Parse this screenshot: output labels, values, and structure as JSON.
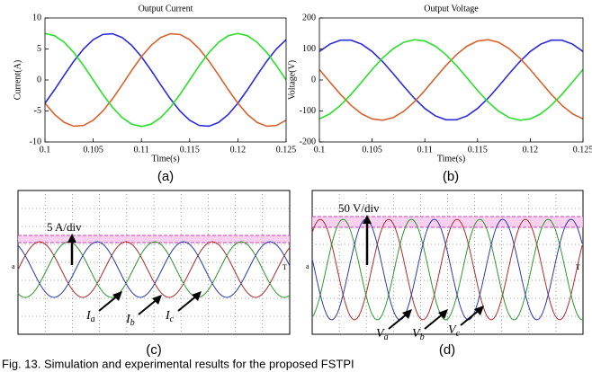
{
  "chart_data": [
    {
      "type": "line",
      "title": "Output Current",
      "x_label": "Time(s)",
      "y_label": "Current(A)",
      "panel_label": "(a)",
      "x": [
        0.1,
        0.101,
        0.102,
        0.103,
        0.104,
        0.105,
        0.106,
        0.107,
        0.108,
        0.109,
        0.11,
        0.111,
        0.112,
        0.113,
        0.114,
        0.115,
        0.116,
        0.117,
        0.118,
        0.119,
        0.12,
        0.121,
        0.122,
        0.123,
        0.124,
        0.125
      ],
      "xlim": [
        0.1,
        0.125
      ],
      "xticks": [
        0.1,
        0.105,
        0.11,
        0.115,
        0.12,
        0.125
      ],
      "ylim": [
        -10,
        10
      ],
      "yticks": [
        -10,
        -5,
        0,
        5,
        10
      ],
      "series": [
        {
          "color": "#2a2ae0",
          "values": [
            -3.75,
            -1.56,
            0.79,
            3.05,
            5.02,
            6.5,
            7.34,
            7.46,
            6.85,
            5.57,
            3.75,
            1.56,
            -0.79,
            -3.05,
            -5.02,
            -6.5,
            -7.34,
            -7.46,
            -6.85,
            -5.57,
            -3.75,
            -1.56,
            0.79,
            3.05,
            5.02,
            6.5
          ]
        },
        {
          "color": "#d9622b",
          "values": [
            -3.75,
            -5.57,
            -6.85,
            -7.46,
            -7.34,
            -6.5,
            -5.02,
            -3.05,
            -0.79,
            1.56,
            3.75,
            5.57,
            6.85,
            7.46,
            7.34,
            6.5,
            5.02,
            3.05,
            0.79,
            -1.56,
            -3.75,
            -5.57,
            -6.85,
            -7.46,
            -7.34,
            -6.5
          ]
        },
        {
          "color": "#2ae02a",
          "values": [
            7.5,
            7.13,
            6.07,
            4.41,
            2.32,
            0,
            -2.32,
            -4.41,
            -6.07,
            -7.13,
            -7.5,
            -7.13,
            -6.07,
            -4.41,
            -2.32,
            0,
            2.32,
            4.41,
            6.07,
            7.13,
            7.5,
            7.13,
            6.07,
            4.41,
            2.32,
            0
          ]
        }
      ]
    },
    {
      "type": "line",
      "title": "Output Voltage",
      "x_label": "Time(s)",
      "y_label": "Voltage(V)",
      "panel_label": "(b)",
      "x": [
        0.1,
        0.101,
        0.102,
        0.103,
        0.104,
        0.105,
        0.106,
        0.107,
        0.108,
        0.109,
        0.11,
        0.111,
        0.112,
        0.113,
        0.114,
        0.115,
        0.116,
        0.117,
        0.118,
        0.119,
        0.12,
        0.121,
        0.122,
        0.123,
        0.124,
        0.125
      ],
      "xlim": [
        0.1,
        0.125
      ],
      "xticks": [
        0.1,
        0.105,
        0.11,
        0.115,
        0.12,
        0.125
      ],
      "ylim": [
        -200,
        200
      ],
      "yticks": [
        -200,
        -100,
        0,
        100,
        200
      ],
      "series": [
        {
          "color": "#2a2ae0",
          "values": [
            91.9,
            115.8,
            128.4,
            128.4,
            115.8,
            91.9,
            59.0,
            20.3,
            -20.3,
            -59.0,
            -91.9,
            -115.8,
            -128.4,
            -128.4,
            -115.8,
            -91.9,
            -59.0,
            -20.3,
            20.3,
            59.0,
            91.9,
            115.8,
            128.4,
            128.4,
            115.8,
            91.9
          ]
        },
        {
          "color": "#d9622b",
          "values": [
            33.7,
            -6.8,
            -46.5,
            -81.8,
            -109.1,
            -125.6,
            -129.9,
            -121.4,
            -101.0,
            -70.9,
            -33.7,
            6.8,
            46.5,
            81.8,
            109.1,
            125.6,
            129.9,
            121.4,
            101.0,
            70.9,
            33.7,
            -6.8,
            -46.5,
            -81.8,
            -109.1,
            -125.6
          ]
        },
        {
          "color": "#2ae02a",
          "values": [
            -125.6,
            -109.1,
            -81.8,
            -46.5,
            -6.8,
            33.7,
            70.9,
            101.0,
            121.4,
            129.9,
            125.6,
            109.1,
            81.8,
            46.5,
            6.8,
            -33.7,
            -70.9,
            -101.0,
            -121.4,
            -129.9,
            -125.6,
            -109.1,
            -81.8,
            -46.5,
            -6.8,
            33.7
          ]
        }
      ]
    }
  ],
  "scope_panels": [
    {
      "panel_label": "(c)",
      "scale": "5 A/div",
      "ground_marker": "a",
      "trigger_marker": "T",
      "phase_labels": [
        {
          "main": "I",
          "sub": "a"
        },
        {
          "main": "I",
          "sub": "b"
        },
        {
          "main": "I",
          "sub": "c"
        }
      ]
    },
    {
      "panel_label": "(d)",
      "scale": "50 V/div",
      "ground_marker": "a",
      "trigger_marker": "T",
      "phase_labels": [
        {
          "main": "V",
          "sub": "a"
        },
        {
          "main": "V",
          "sub": "b"
        },
        {
          "main": "V",
          "sub": "c"
        }
      ]
    }
  ],
  "caption": "Fig. 13.  Simulation and experimental results for the proposed FSTPI"
}
